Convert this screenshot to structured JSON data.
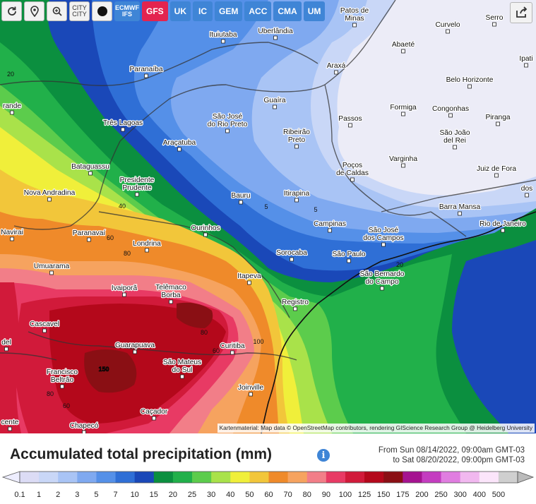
{
  "toolbar": {
    "refresh_icon": "refresh-icon",
    "pin_icon": "map-pin-icon",
    "zoom_icon": "zoom-icon",
    "city_label_top": "CITY",
    "city_label_bottom": "CITY",
    "dot_icon": "black-dot-icon",
    "ecmwf_top": "ECMWF",
    "ecmwf_bottom": "IFS",
    "models": [
      "GFS",
      "UK",
      "IC",
      "GEM",
      "ACC",
      "CMA",
      "UM"
    ],
    "active_model": "GFS",
    "share_icon": "share-icon"
  },
  "map": {
    "cities": [
      {
        "name": "Patos de",
        "name2": "Minas"
      },
      {
        "name": "Serro"
      },
      {
        "name": "Curvelo"
      },
      {
        "name": "Ituiutaba"
      },
      {
        "name": "Uberlândia"
      },
      {
        "name": "Abaeté"
      },
      {
        "name": "Ipati"
      },
      {
        "name": "Paranaíba"
      },
      {
        "name": "Araxá"
      },
      {
        "name": "Belo Horizonte"
      },
      {
        "name": "Guaíra"
      },
      {
        "name": "Formiga"
      },
      {
        "name": "Congonhas"
      },
      {
        "name": "São José",
        "name2": "do Rio Preto"
      },
      {
        "name": "Passos"
      },
      {
        "name": "Piranga"
      },
      {
        "name": "Três Lagoas"
      },
      {
        "name": "Ribeirão",
        "name2": "Preto"
      },
      {
        "name": "São João",
        "name2": "del Rei"
      },
      {
        "name": "Araçatuba"
      },
      {
        "name": "Varginha"
      },
      {
        "name": "Bataguassu"
      },
      {
        "name": "Poços",
        "name2": "de Caldas"
      },
      {
        "name": "Juiz de Fora"
      },
      {
        "name": "Presidente",
        "name2": "Prudente"
      },
      {
        "name": "Itirapina"
      },
      {
        "name": "Nova Andradina"
      },
      {
        "name": "Bauru"
      },
      {
        "name": "Barra Mansa"
      },
      {
        "name": "Ourinhos"
      },
      {
        "name": "Campinas"
      },
      {
        "name": "São José",
        "name2": "dos Campos"
      },
      {
        "name": "Rio de Janeiro"
      },
      {
        "name": "Paranavaí"
      },
      {
        "name": "Londrina"
      },
      {
        "name": "Sorocaba"
      },
      {
        "name": "São Paulo"
      },
      {
        "name": "Umuarama"
      },
      {
        "name": "São Bernardo",
        "name2": "do Campo"
      },
      {
        "name": "Itapeva"
      },
      {
        "name": "Ivaiporã"
      },
      {
        "name": "Telêmaco",
        "name2": "Borba"
      },
      {
        "name": "Registro"
      },
      {
        "name": "Cascavel"
      },
      {
        "name": "Guarapuava"
      },
      {
        "name": "Curitiba"
      },
      {
        "name": "Francisco",
        "name2": "Beltrão"
      },
      {
        "name": "São Mateus",
        "name2": "do Sul"
      },
      {
        "name": "Joinville"
      },
      {
        "name": "Caçador"
      },
      {
        "name": "Chapecó"
      },
      {
        "name": "Navirai"
      },
      {
        "name": "randе"
      },
      {
        "name": "del"
      },
      {
        "name": "cente"
      },
      {
        "name": "dos"
      }
    ],
    "contour_labels": [
      "20",
      "5",
      "5",
      "40",
      "60",
      "80",
      "80",
      "60",
      "100",
      "150",
      "80",
      "60",
      "20"
    ],
    "attribution": "Kartenmaterial: Map data © OpenStreetMap contributors, rendering GIScience Research Group @ Heidelberg University"
  },
  "legend": {
    "title": "Accumulated total precipitation (mm)",
    "info_icon": "info-icon",
    "info_glyph": "i",
    "from": "From Sun 08/14/2022, 09:00am GMT-03",
    "to": "to Sat 08/20/2022, 09:00pm GMT-03",
    "units": "mm",
    "scale": [
      {
        "value": "0.1",
        "color": "#dcdcf5"
      },
      {
        "value": "1",
        "color": "#c9d7f7"
      },
      {
        "value": "2",
        "color": "#a9c4f5"
      },
      {
        "value": "3",
        "color": "#7fa9f0"
      },
      {
        "value": "5",
        "color": "#5590e8"
      },
      {
        "value": "7",
        "color": "#2f6fd6"
      },
      {
        "value": "10",
        "color": "#1a48b8"
      },
      {
        "value": "15",
        "color": "#0b8f3f"
      },
      {
        "value": "20",
        "color": "#21b04a"
      },
      {
        "value": "25",
        "color": "#5ccc4c"
      },
      {
        "value": "30",
        "color": "#a9e24a"
      },
      {
        "value": "40",
        "color": "#f0ef3a"
      },
      {
        "value": "50",
        "color": "#f2c63a"
      },
      {
        "value": "60",
        "color": "#ef8a2a"
      },
      {
        "value": "70",
        "color": "#f6a35f"
      },
      {
        "value": "80",
        "color": "#f27e88"
      },
      {
        "value": "90",
        "color": "#e83a64"
      },
      {
        "value": "100",
        "color": "#d11a3a"
      },
      {
        "value": "125",
        "color": "#b4081b"
      },
      {
        "value": "150",
        "color": "#8a0f14"
      },
      {
        "value": "175",
        "color": "#a51390"
      },
      {
        "value": "200",
        "color": "#c43cc0"
      },
      {
        "value": "250",
        "color": "#e07de0"
      },
      {
        "value": "300",
        "color": "#f1b8ef"
      },
      {
        "value": "400",
        "color": "#fbe5fa"
      },
      {
        "value": "500",
        "color": "#cfcfcf"
      }
    ]
  }
}
